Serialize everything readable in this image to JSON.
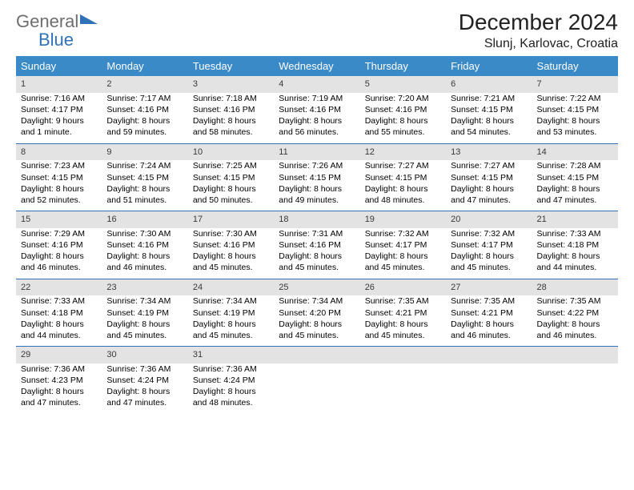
{
  "logo": {
    "text1": "General",
    "text2": "Blue"
  },
  "header": {
    "month_title": "December 2024",
    "location": "Slunj, Karlovac, Croatia"
  },
  "colors": {
    "header_bg": "#3a8ac8",
    "header_text": "#ffffff",
    "daynum_bg": "#e3e3e3",
    "rule": "#2f72b8",
    "logo_gray": "#6e6e6e",
    "logo_blue": "#2f72b8"
  },
  "day_names": [
    "Sunday",
    "Monday",
    "Tuesday",
    "Wednesday",
    "Thursday",
    "Friday",
    "Saturday"
  ],
  "weeks": [
    [
      {
        "day": "1",
        "sunrise": "Sunrise: 7:16 AM",
        "sunset": "Sunset: 4:17 PM",
        "daylight": "Daylight: 9 hours and 1 minute."
      },
      {
        "day": "2",
        "sunrise": "Sunrise: 7:17 AM",
        "sunset": "Sunset: 4:16 PM",
        "daylight": "Daylight: 8 hours and 59 minutes."
      },
      {
        "day": "3",
        "sunrise": "Sunrise: 7:18 AM",
        "sunset": "Sunset: 4:16 PM",
        "daylight": "Daylight: 8 hours and 58 minutes."
      },
      {
        "day": "4",
        "sunrise": "Sunrise: 7:19 AM",
        "sunset": "Sunset: 4:16 PM",
        "daylight": "Daylight: 8 hours and 56 minutes."
      },
      {
        "day": "5",
        "sunrise": "Sunrise: 7:20 AM",
        "sunset": "Sunset: 4:16 PM",
        "daylight": "Daylight: 8 hours and 55 minutes."
      },
      {
        "day": "6",
        "sunrise": "Sunrise: 7:21 AM",
        "sunset": "Sunset: 4:15 PM",
        "daylight": "Daylight: 8 hours and 54 minutes."
      },
      {
        "day": "7",
        "sunrise": "Sunrise: 7:22 AM",
        "sunset": "Sunset: 4:15 PM",
        "daylight": "Daylight: 8 hours and 53 minutes."
      }
    ],
    [
      {
        "day": "8",
        "sunrise": "Sunrise: 7:23 AM",
        "sunset": "Sunset: 4:15 PM",
        "daylight": "Daylight: 8 hours and 52 minutes."
      },
      {
        "day": "9",
        "sunrise": "Sunrise: 7:24 AM",
        "sunset": "Sunset: 4:15 PM",
        "daylight": "Daylight: 8 hours and 51 minutes."
      },
      {
        "day": "10",
        "sunrise": "Sunrise: 7:25 AM",
        "sunset": "Sunset: 4:15 PM",
        "daylight": "Daylight: 8 hours and 50 minutes."
      },
      {
        "day": "11",
        "sunrise": "Sunrise: 7:26 AM",
        "sunset": "Sunset: 4:15 PM",
        "daylight": "Daylight: 8 hours and 49 minutes."
      },
      {
        "day": "12",
        "sunrise": "Sunrise: 7:27 AM",
        "sunset": "Sunset: 4:15 PM",
        "daylight": "Daylight: 8 hours and 48 minutes."
      },
      {
        "day": "13",
        "sunrise": "Sunrise: 7:27 AM",
        "sunset": "Sunset: 4:15 PM",
        "daylight": "Daylight: 8 hours and 47 minutes."
      },
      {
        "day": "14",
        "sunrise": "Sunrise: 7:28 AM",
        "sunset": "Sunset: 4:15 PM",
        "daylight": "Daylight: 8 hours and 47 minutes."
      }
    ],
    [
      {
        "day": "15",
        "sunrise": "Sunrise: 7:29 AM",
        "sunset": "Sunset: 4:16 PM",
        "daylight": "Daylight: 8 hours and 46 minutes."
      },
      {
        "day": "16",
        "sunrise": "Sunrise: 7:30 AM",
        "sunset": "Sunset: 4:16 PM",
        "daylight": "Daylight: 8 hours and 46 minutes."
      },
      {
        "day": "17",
        "sunrise": "Sunrise: 7:30 AM",
        "sunset": "Sunset: 4:16 PM",
        "daylight": "Daylight: 8 hours and 45 minutes."
      },
      {
        "day": "18",
        "sunrise": "Sunrise: 7:31 AM",
        "sunset": "Sunset: 4:16 PM",
        "daylight": "Daylight: 8 hours and 45 minutes."
      },
      {
        "day": "19",
        "sunrise": "Sunrise: 7:32 AM",
        "sunset": "Sunset: 4:17 PM",
        "daylight": "Daylight: 8 hours and 45 minutes."
      },
      {
        "day": "20",
        "sunrise": "Sunrise: 7:32 AM",
        "sunset": "Sunset: 4:17 PM",
        "daylight": "Daylight: 8 hours and 45 minutes."
      },
      {
        "day": "21",
        "sunrise": "Sunrise: 7:33 AM",
        "sunset": "Sunset: 4:18 PM",
        "daylight": "Daylight: 8 hours and 44 minutes."
      }
    ],
    [
      {
        "day": "22",
        "sunrise": "Sunrise: 7:33 AM",
        "sunset": "Sunset: 4:18 PM",
        "daylight": "Daylight: 8 hours and 44 minutes."
      },
      {
        "day": "23",
        "sunrise": "Sunrise: 7:34 AM",
        "sunset": "Sunset: 4:19 PM",
        "daylight": "Daylight: 8 hours and 45 minutes."
      },
      {
        "day": "24",
        "sunrise": "Sunrise: 7:34 AM",
        "sunset": "Sunset: 4:19 PM",
        "daylight": "Daylight: 8 hours and 45 minutes."
      },
      {
        "day": "25",
        "sunrise": "Sunrise: 7:34 AM",
        "sunset": "Sunset: 4:20 PM",
        "daylight": "Daylight: 8 hours and 45 minutes."
      },
      {
        "day": "26",
        "sunrise": "Sunrise: 7:35 AM",
        "sunset": "Sunset: 4:21 PM",
        "daylight": "Daylight: 8 hours and 45 minutes."
      },
      {
        "day": "27",
        "sunrise": "Sunrise: 7:35 AM",
        "sunset": "Sunset: 4:21 PM",
        "daylight": "Daylight: 8 hours and 46 minutes."
      },
      {
        "day": "28",
        "sunrise": "Sunrise: 7:35 AM",
        "sunset": "Sunset: 4:22 PM",
        "daylight": "Daylight: 8 hours and 46 minutes."
      }
    ],
    [
      {
        "day": "29",
        "sunrise": "Sunrise: 7:36 AM",
        "sunset": "Sunset: 4:23 PM",
        "daylight": "Daylight: 8 hours and 47 minutes."
      },
      {
        "day": "30",
        "sunrise": "Sunrise: 7:36 AM",
        "sunset": "Sunset: 4:24 PM",
        "daylight": "Daylight: 8 hours and 47 minutes."
      },
      {
        "day": "31",
        "sunrise": "Sunrise: 7:36 AM",
        "sunset": "Sunset: 4:24 PM",
        "daylight": "Daylight: 8 hours and 48 minutes."
      },
      null,
      null,
      null,
      null
    ]
  ]
}
